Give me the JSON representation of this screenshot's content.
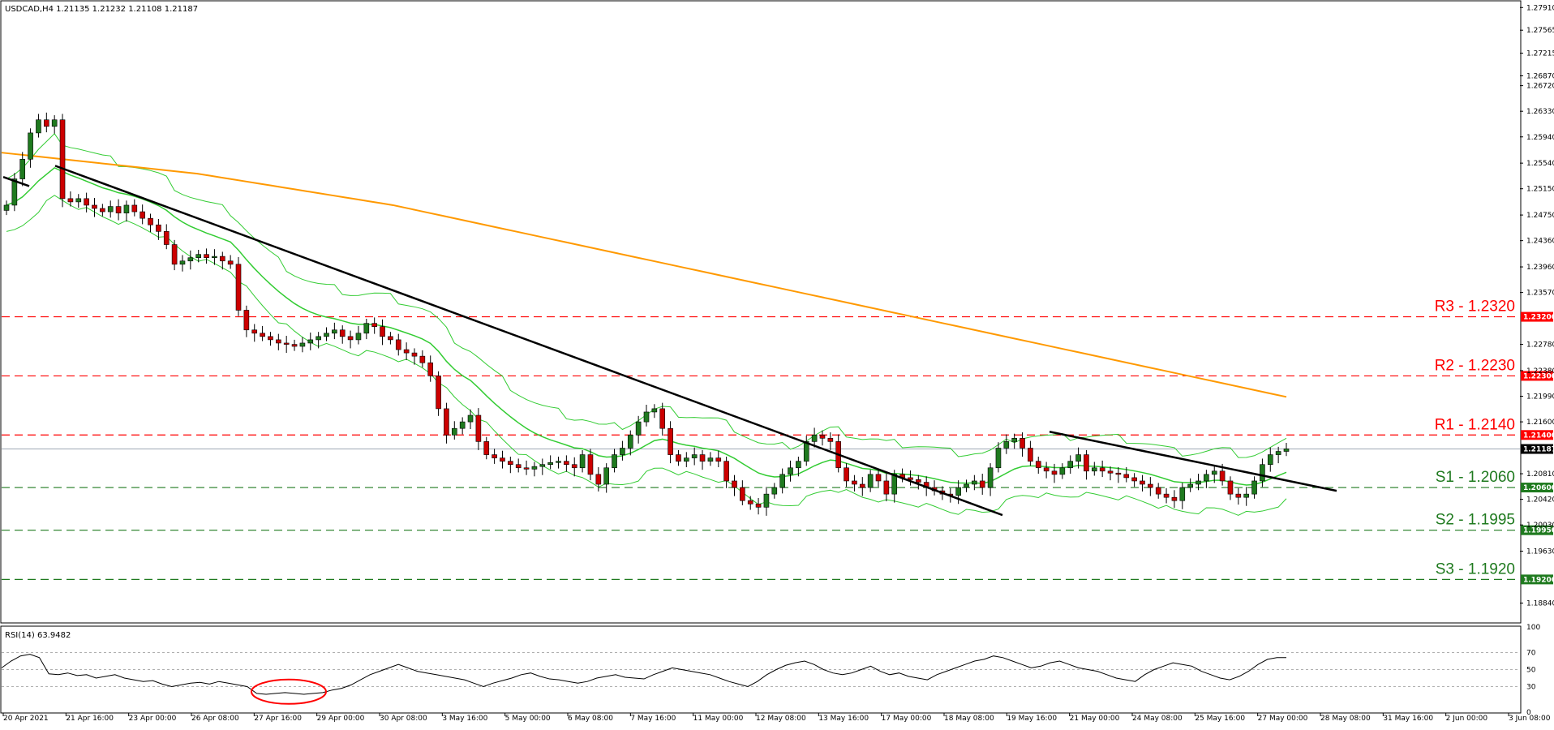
{
  "chart_data": {
    "type": "candlestick",
    "symbol_header": "USDCAD,H4  1.21135 1.21232 1.21108 1.21187",
    "price_axis": {
      "ylim": [
        1.1855,
        1.28
      ],
      "ticks": [
        "1.27910",
        "1.27565",
        "1.27215",
        "1.26870",
        "1.26720",
        "1.26330",
        "1.25940",
        "1.25540",
        "1.25150",
        "1.24750",
        "1.24360",
        "1.23960",
        "1.23570",
        "1.22780",
        "1.22380",
        "1.21990",
        "1.21600",
        "1.20810",
        "1.20420",
        "1.20030",
        "1.19630",
        "1.18840"
      ]
    },
    "time_labels": [
      "20 Apr 2021",
      "21 Apr 16:00",
      "23 Apr 00:00",
      "26 Apr 08:00",
      "27 Apr 16:00",
      "29 Apr 00:00",
      "30 Apr 08:00",
      "3 May 16:00",
      "5 May 00:00",
      "6 May 08:00",
      "7 May 16:00",
      "11 May 00:00",
      "12 May 08:00",
      "13 May 16:00",
      "17 May 00:00",
      "18 May 08:00",
      "19 May 16:00",
      "21 May 00:00",
      "24 May 08:00",
      "25 May 16:00",
      "27 May 00:00",
      "28 May 08:00",
      "31 May 16:00",
      "2 Jun 00:00",
      "3 Jun 08:00"
    ],
    "current_price": {
      "value": 1.21187,
      "tag": "1.21187",
      "color": "#000000"
    },
    "levels": [
      {
        "name": "R3",
        "label": "R3 - 1.2320",
        "value": 1.232,
        "tag": "1.23200",
        "color": "#ff0000"
      },
      {
        "name": "R2",
        "label": "R2 - 1.2230",
        "value": 1.223,
        "tag": "1.22300",
        "color": "#ff0000"
      },
      {
        "name": "R1",
        "label": "R1 - 1.2140",
        "value": 1.214,
        "tag": "1.21400",
        "color": "#ff0000"
      },
      {
        "name": "S1",
        "label": "S1 - 1.2060",
        "value": 1.206,
        "tag": "1.20600",
        "color": "#1f7a1f"
      },
      {
        "name": "S2",
        "label": "S2 - 1.1995",
        "value": 1.1995,
        "tag": "1.19950",
        "color": "#1f7a1f"
      },
      {
        "name": "S3",
        "label": "S3 - 1.1920",
        "value": 1.192,
        "tag": "1.19200",
        "color": "#1f7a1f"
      }
    ],
    "close_series": [
      1.249,
      1.253,
      1.256,
      1.26,
      1.262,
      1.261,
      1.262,
      1.25,
      1.2495,
      1.25,
      1.249,
      1.2485,
      1.248,
      1.2488,
      1.2478,
      1.249,
      1.248,
      1.247,
      1.246,
      1.245,
      1.243,
      1.24,
      1.2405,
      1.241,
      1.2415,
      1.241,
      1.2412,
      1.2405,
      1.24,
      1.233,
      1.23,
      1.2295,
      1.229,
      1.2285,
      1.228,
      1.2278,
      1.2275,
      1.228,
      1.2285,
      1.229,
      1.2295,
      1.23,
      1.229,
      1.2285,
      1.2295,
      1.231,
      1.2305,
      1.229,
      1.2285,
      1.227,
      1.2265,
      1.226,
      1.225,
      1.223,
      1.218,
      1.214,
      1.215,
      1.216,
      1.217,
      1.213,
      1.211,
      1.2105,
      1.21,
      1.2095,
      1.209,
      1.2088,
      1.2092,
      1.2095,
      1.2098,
      1.21,
      1.2095,
      1.209,
      1.211,
      1.208,
      1.2065,
      1.209,
      1.211,
      1.212,
      1.214,
      1.216,
      1.2175,
      1.218,
      1.215,
      1.211,
      1.21,
      1.2105,
      1.211,
      1.21,
      1.2105,
      1.21,
      1.207,
      1.206,
      1.204,
      1.2035,
      1.203,
      1.205,
      1.206,
      1.208,
      1.209,
      1.21,
      1.213,
      1.214,
      1.2135,
      1.213,
      1.209,
      1.207,
      1.2065,
      1.206,
      1.208,
      1.207,
      1.205,
      1.208,
      1.2075,
      1.2072,
      1.2068,
      1.206,
      1.2055,
      1.205,
      1.2048,
      1.206,
      1.2065,
      1.207,
      1.206,
      1.209,
      1.212,
      1.213,
      1.2135,
      1.212,
      1.21,
      1.209,
      1.2085,
      1.208,
      1.209,
      1.21,
      1.211,
      1.2085,
      1.209,
      1.2085,
      1.2082,
      1.208,
      1.2075,
      1.207,
      1.2065,
      1.206,
      1.205,
      1.2045,
      1.204,
      1.206,
      1.2065,
      1.207,
      1.208,
      1.2085,
      1.207,
      1.205,
      1.2045,
      1.205,
      1.207,
      1.2095,
      1.211,
      1.2115,
      1.2119
    ],
    "ma_200_series": [
      1.257,
      1.2568,
      1.2566,
      1.2564,
      1.2562,
      1.256,
      1.2558,
      1.2556,
      1.2554,
      1.2552,
      1.255,
      1.2548,
      1.2546,
      1.2544,
      1.2542,
      1.254,
      1.2538,
      1.2535,
      1.2532,
      1.2529,
      1.2526,
      1.2523,
      1.252,
      1.2517,
      1.2514,
      1.2511,
      1.2508,
      1.2505,
      1.2502,
      1.2499,
      1.2496,
      1.2493,
      1.249,
      1.2486,
      1.2482,
      1.2478,
      1.2474,
      1.247,
      1.2466,
      1.2462,
      1.2458,
      1.2454,
      1.245,
      1.2446,
      1.2442,
      1.2438,
      1.2434,
      1.243,
      1.2426,
      1.2422,
      1.2418,
      1.2414,
      1.241,
      1.2406,
      1.2402,
      1.2398,
      1.2394,
      1.239,
      1.2386,
      1.2382,
      1.2378,
      1.2374,
      1.237,
      1.2366,
      1.2362,
      1.2358,
      1.2354,
      1.235,
      1.2346,
      1.2342,
      1.2338,
      1.2334,
      1.233,
      1.2326,
      1.2322,
      1.2318,
      1.2314,
      1.231,
      1.2306,
      1.2302,
      1.2298,
      1.2294,
      1.229,
      1.2286,
      1.2282,
      1.2278,
      1.2274,
      1.227,
      1.2266,
      1.2262,
      1.2258,
      1.2254,
      1.225,
      1.2246,
      1.2242,
      1.2238,
      1.2234,
      1.223,
      1.2226,
      1.2222,
      1.2218,
      1.2214,
      1.221,
      1.2206,
      1.2202,
      1.2198
    ],
    "rsi": {
      "label": "RSI(14) 63.9482",
      "ylim": [
        0,
        100
      ],
      "ticks": [
        100,
        70,
        50,
        30,
        0
      ],
      "values": [
        52,
        60,
        66,
        68,
        64,
        45,
        44,
        46,
        43,
        44,
        40,
        42,
        44,
        40,
        38,
        36,
        37,
        33,
        30,
        32,
        34,
        35,
        33,
        36,
        34,
        32,
        30,
        22,
        21,
        22,
        23,
        22,
        21,
        22,
        23,
        26,
        28,
        32,
        38,
        44,
        48,
        52,
        56,
        52,
        48,
        46,
        44,
        42,
        40,
        38,
        34,
        30,
        34,
        37,
        40,
        44,
        46,
        42,
        39,
        38,
        36,
        34,
        36,
        40,
        42,
        44,
        41,
        40,
        39,
        44,
        48,
        52,
        50,
        48,
        46,
        44,
        40,
        36,
        33,
        30,
        36,
        44,
        50,
        55,
        58,
        60,
        56,
        50,
        46,
        44,
        46,
        50,
        54,
        48,
        44,
        46,
        42,
        40,
        38,
        44,
        48,
        52,
        56,
        60,
        62,
        66,
        64,
        60,
        56,
        52,
        54,
        58,
        60,
        56,
        52,
        50,
        48,
        44,
        40,
        38,
        36,
        44,
        50,
        54,
        58,
        56,
        54,
        48,
        44,
        40,
        38,
        42,
        48,
        56,
        62,
        64,
        64
      ],
      "line_color": "#000000"
    },
    "bollinger_color": "#33cc33",
    "ma_color": "#ff9900"
  }
}
